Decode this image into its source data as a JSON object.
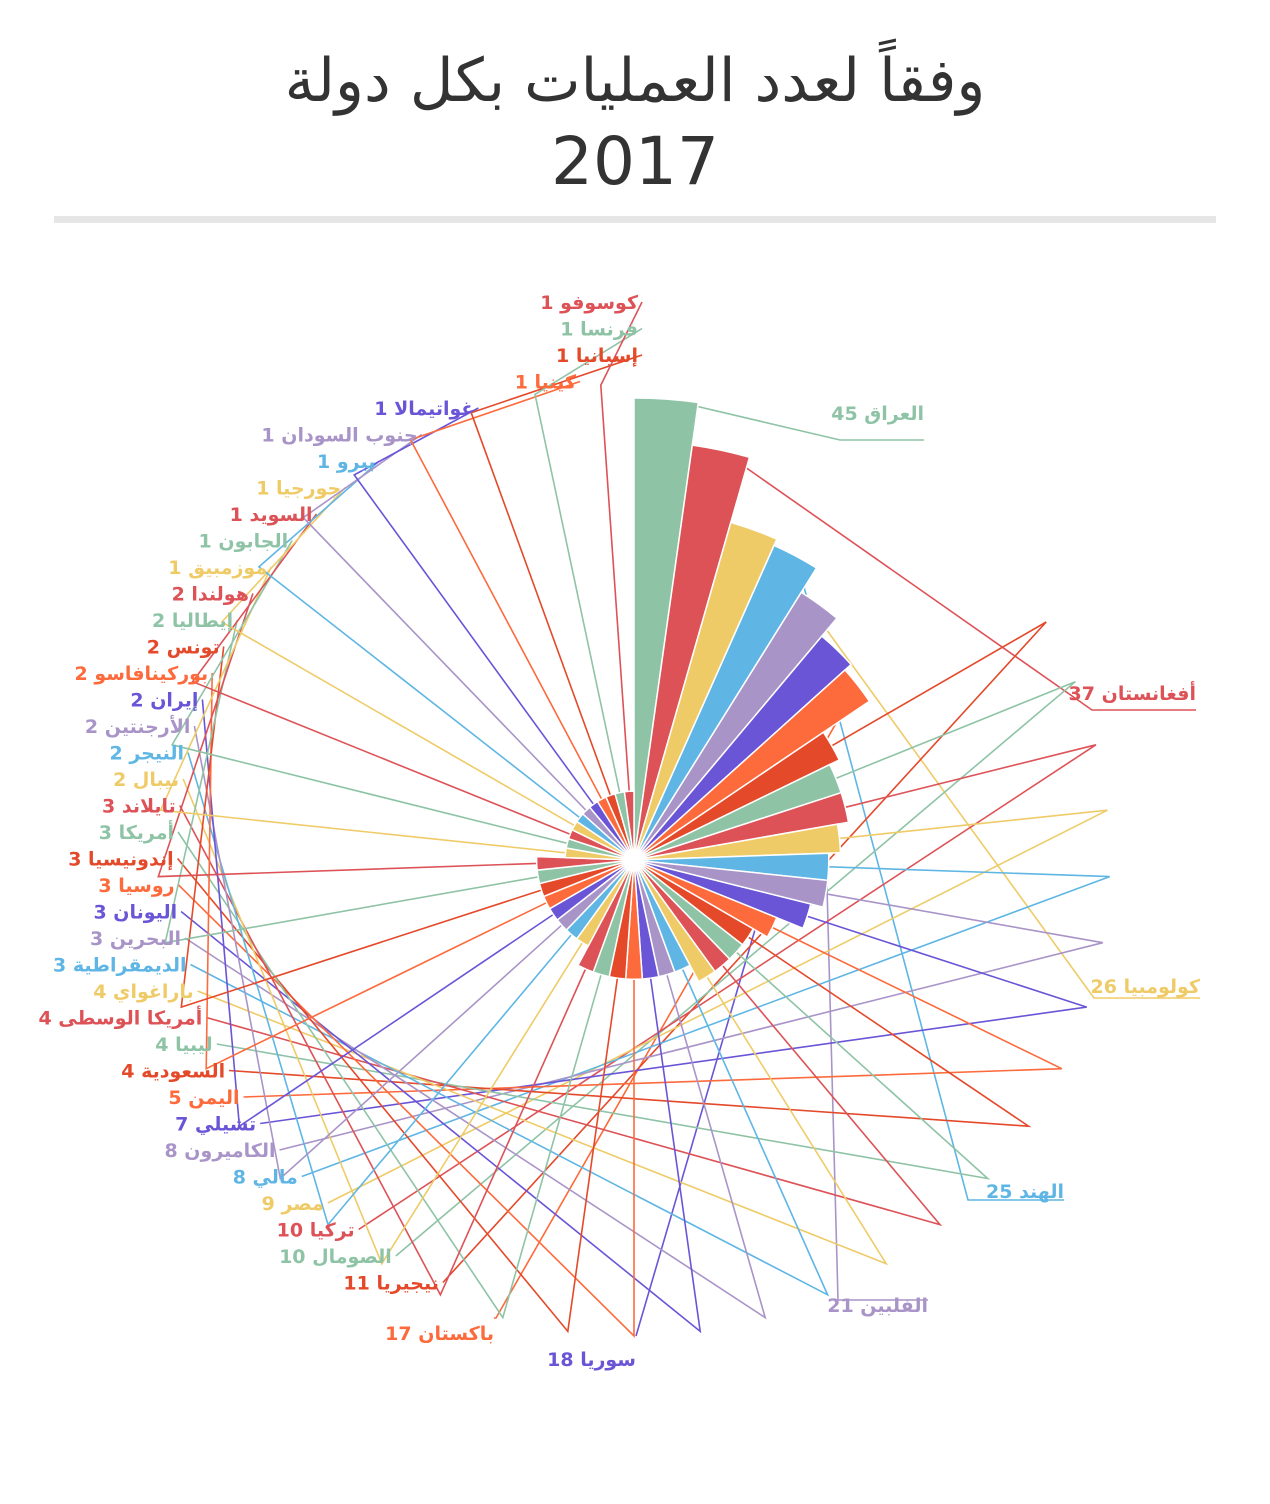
{
  "header": {
    "title_line1": "وفقاً لعدد العمليات بكل دولة",
    "title_line2": "2017"
  },
  "chart_data": {
    "type": "polar-area",
    "title": "وفقاً لعدد العمليات بكل دولة 2017",
    "sort": "descending clockwise from 12 o'clock",
    "max_value": 45,
    "slices": [
      {
        "name": "العراق",
        "value": 45,
        "color": "#8fc3a6"
      },
      {
        "name": "أفغانستان",
        "value": 37,
        "color": "#dd5257"
      },
      {
        "name": "كولومبيا",
        "value": 26,
        "color": "#efcb68"
      },
      {
        "name": "الهند",
        "value": 25,
        "color": "#5fb6e4"
      },
      {
        "name": "الفلبين",
        "value": 21,
        "color": "#a994c8"
      },
      {
        "name": "سوريا",
        "value": 18,
        "color": "#6a55d6"
      },
      {
        "name": "باكستان",
        "value": 17,
        "color": "#fd6a3b"
      },
      {
        "name": "نيجيريا",
        "value": 11,
        "color": "#e4492a"
      },
      {
        "name": "الصومال",
        "value": 10,
        "color": "#8fc3a6"
      },
      {
        "name": "تركيا",
        "value": 10,
        "color": "#dd5257"
      },
      {
        "name": "مصر",
        "value": 9,
        "color": "#efcb68"
      },
      {
        "name": "مالي",
        "value": 8,
        "color": "#5fb6e4"
      },
      {
        "name": "الكاميرون",
        "value": 8,
        "color": "#a994c8"
      },
      {
        "name": "تشيلي",
        "value": 7,
        "color": "#6a55d6"
      },
      {
        "name": "اليمن",
        "value": 5,
        "color": "#fd6a3b"
      },
      {
        "name": "السعودية",
        "value": 4,
        "color": "#e4492a"
      },
      {
        "name": "ليبيا",
        "value": 4,
        "color": "#8fc3a6"
      },
      {
        "name": "أمريكا الوسطى",
        "value": 4,
        "color": "#dd5257"
      },
      {
        "name": "باراغواي",
        "value": 4,
        "color": "#efcb68"
      },
      {
        "name": "الديمقراطية",
        "value": 3,
        "color": "#5fb6e4"
      },
      {
        "name": "البحرين",
        "value": 3,
        "color": "#a994c8"
      },
      {
        "name": "اليونان",
        "value": 3,
        "color": "#6a55d6"
      },
      {
        "name": "روسيا",
        "value": 3,
        "color": "#fd6a3b"
      },
      {
        "name": "إندونيسيا",
        "value": 3,
        "color": "#e4492a"
      },
      {
        "name": "أمريكا",
        "value": 3,
        "color": "#8fc3a6"
      },
      {
        "name": "تايلاند",
        "value": 3,
        "color": "#dd5257"
      },
      {
        "name": "نيبال",
        "value": 2,
        "color": "#efcb68"
      },
      {
        "name": "النيجر",
        "value": 2,
        "color": "#5fb6e4"
      },
      {
        "name": "الأرجنتين",
        "value": 2,
        "color": "#a994c8"
      },
      {
        "name": "إيران",
        "value": 2,
        "color": "#6a55d6"
      },
      {
        "name": "بوركينافاسو",
        "value": 2,
        "color": "#fd6a3b"
      },
      {
        "name": "تونس",
        "value": 2,
        "color": "#e4492a"
      },
      {
        "name": "إيطاليا",
        "value": 2,
        "color": "#8fc3a6"
      },
      {
        "name": "هولندا",
        "value": 2,
        "color": "#dd5257"
      },
      {
        "name": "موزمبيق",
        "value": 1,
        "color": "#efcb68"
      },
      {
        "name": "الجابون",
        "value": 1,
        "color": "#8fc3a6"
      },
      {
        "name": "السويد",
        "value": 1,
        "color": "#dd5257"
      },
      {
        "name": "جورجيا",
        "value": 1,
        "color": "#efcb68"
      },
      {
        "name": "بيرو",
        "value": 1,
        "color": "#5fb6e4"
      },
      {
        "name": "جنوب السودان",
        "value": 1,
        "color": "#a994c8"
      },
      {
        "name": "غواتيمالا",
        "value": 1,
        "color": "#6a55d6"
      },
      {
        "name": "كينيا",
        "value": 1,
        "color": "#fd6a3b"
      },
      {
        "name": "إسبانيا",
        "value": 1,
        "color": "#e4492a"
      },
      {
        "name": "فرنسا",
        "value": 1,
        "color": "#8fc3a6"
      },
      {
        "name": "كوسوفو",
        "value": 1,
        "color": "#dd5257"
      }
    ]
  }
}
